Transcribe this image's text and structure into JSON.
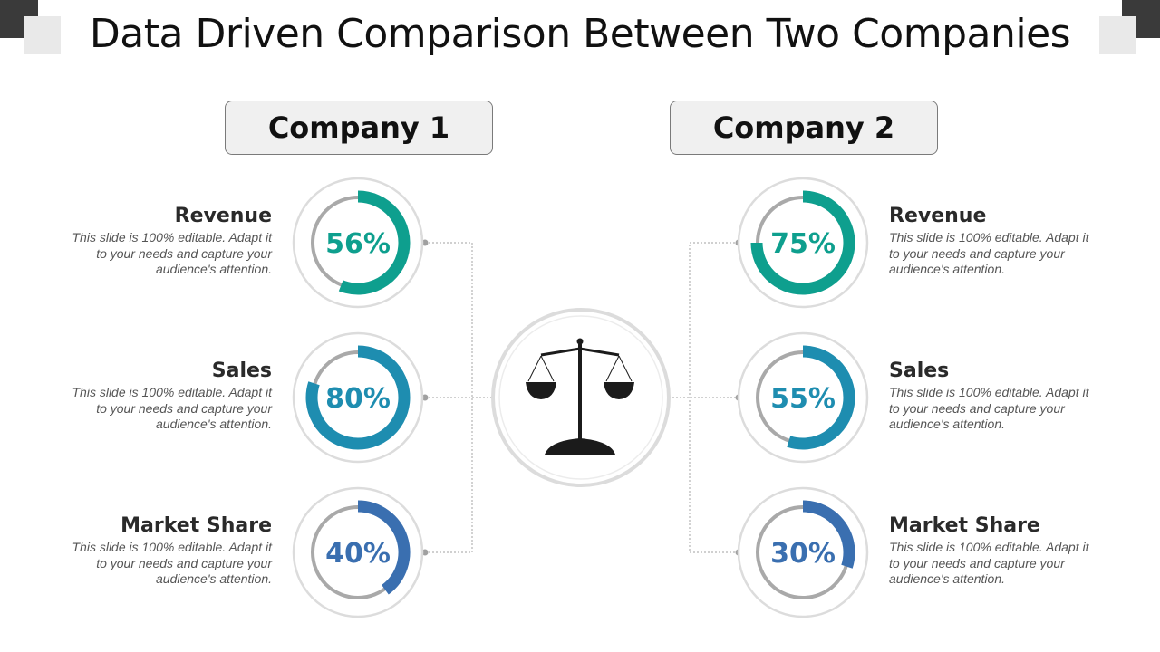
{
  "title": "Data Driven Comparison Between Two Companies",
  "colors": {
    "teal": "#0e9f8e",
    "blue": "#1e8db0",
    "navy": "#3a6fb0",
    "track": "#a9a9a9",
    "ring": "#dcdcdc"
  },
  "center_icon": "balance-scale-icon",
  "companies": [
    {
      "name": "Company 1",
      "metrics": [
        {
          "label": "Revenue",
          "value": 56,
          "display": "56%",
          "color": "teal",
          "desc": [
            "This slide is 100% editable.  Adapt it",
            "to your needs and capture your",
            "audience's attention."
          ]
        },
        {
          "label": "Sales",
          "value": 80,
          "display": "80%",
          "color": "blue",
          "desc": [
            "This slide is 100% editable.  Adapt it",
            "to your needs and capture your",
            "audience's attention."
          ]
        },
        {
          "label": "Market Share",
          "value": 40,
          "display": "40%",
          "color": "navy",
          "desc": [
            "This slide is 100% editable.  Adapt it",
            "to your needs and capture your",
            "audience's attention."
          ]
        }
      ]
    },
    {
      "name": "Company 2",
      "metrics": [
        {
          "label": "Revenue",
          "value": 75,
          "display": "75%",
          "color": "teal",
          "desc": [
            "This slide is 100% editable.  Adapt it",
            "to your needs and capture your",
            "audience's attention."
          ]
        },
        {
          "label": "Sales",
          "value": 55,
          "display": "55%",
          "color": "blue",
          "desc": [
            "This slide is 100% editable.  Adapt it",
            "to your needs and capture your",
            "audience's attention."
          ]
        },
        {
          "label": "Market Share",
          "value": 30,
          "display": "30%",
          "color": "navy",
          "desc": [
            "This slide is 100% editable.  Adapt it",
            "to your needs and capture your",
            "audience's attention."
          ]
        }
      ]
    }
  ]
}
